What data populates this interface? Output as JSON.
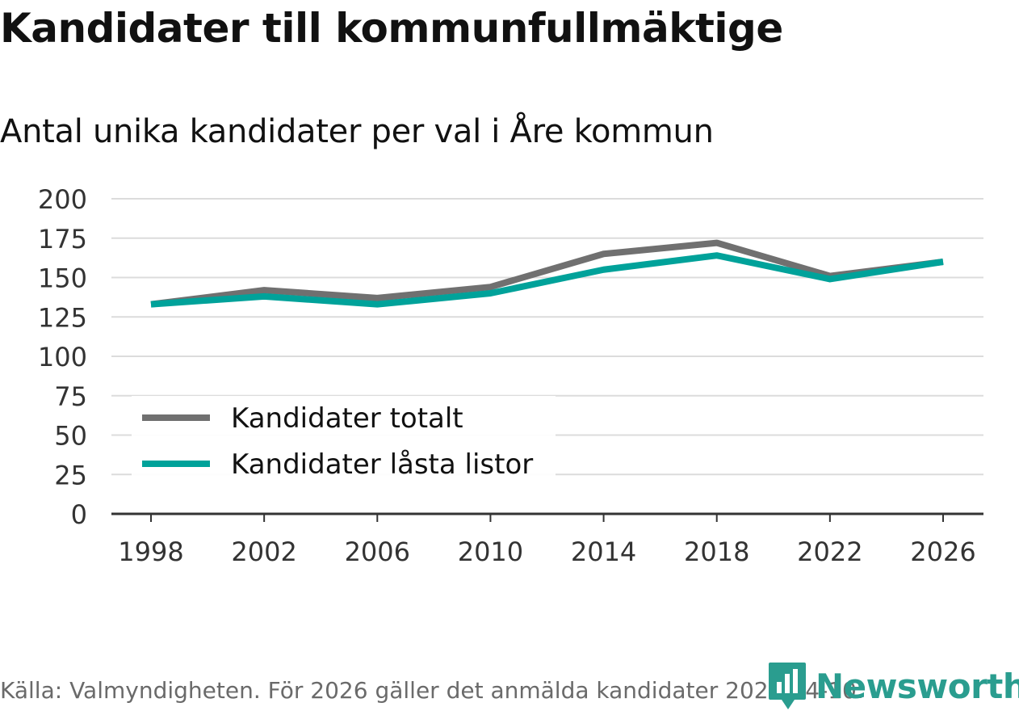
{
  "title": "Kandidater till kommunfullmäktige",
  "subtitle": "Antal unika kandidater per val i Åre kommun",
  "footer": "Källa: Valmyndigheten. För 2026 gäller det anmälda kandidater 2026-04-10.",
  "brand": "Newsworthy",
  "colors": {
    "series_total": "#707070",
    "series_locked": "#00a29a",
    "grid": "#dcdcdc",
    "axis": "#333333",
    "brand": "#2a9d8f"
  },
  "chart_data": {
    "type": "line",
    "x": [
      "1998",
      "2002",
      "2006",
      "2010",
      "2014",
      "2018",
      "2022",
      "2026"
    ],
    "series": [
      {
        "name": "Kandidater totalt",
        "values": [
          133,
          142,
          137,
          144,
          165,
          172,
          151,
          160
        ]
      },
      {
        "name": "Kandidater låsta listor",
        "values": [
          133,
          138,
          133,
          140,
          155,
          164,
          149,
          160
        ]
      }
    ],
    "yticks": [
      0,
      25,
      50,
      75,
      100,
      125,
      150,
      175,
      200
    ],
    "ylim": [
      0,
      200
    ],
    "grid": true,
    "legend_position": "bottom-left"
  }
}
